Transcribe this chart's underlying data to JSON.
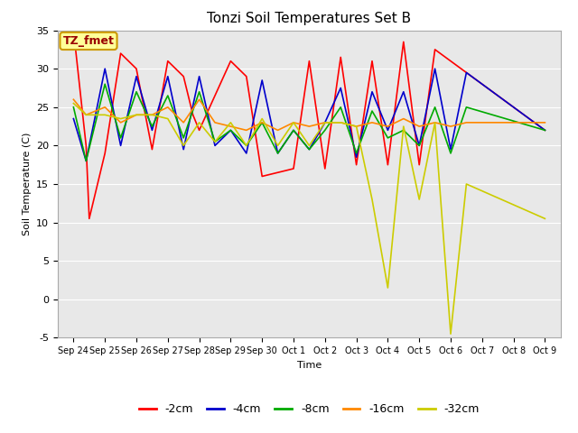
{
  "title": "Tonzi Soil Temperatures Set B",
  "xlabel": "Time",
  "ylabel": "Soil Temperature (C)",
  "ylim": [
    -5,
    35
  ],
  "xlim": [
    -0.5,
    15.5
  ],
  "background_color": "#ffffff",
  "plot_bg_color": "#e8e8e8",
  "annotation_text": "TZ_fmet",
  "annotation_bg": "#ffff99",
  "annotation_border": "#cc9900",
  "annotation_text_color": "#990000",
  "legend_labels": [
    "-2cm",
    "-4cm",
    "-8cm",
    "-16cm",
    "-32cm"
  ],
  "line_colors": [
    "#ff0000",
    "#0000cc",
    "#00aa00",
    "#ff8800",
    "#cccc00"
  ],
  "line_widths": [
    1.2,
    1.2,
    1.2,
    1.2,
    1.2
  ],
  "xtick_labels": [
    "Sep 24",
    "Sep 25",
    "Sep 26",
    "Sep 27",
    "Sep 28",
    "Sep 29",
    "Sep 30",
    "Oct 1",
    "Oct 2",
    "Oct 3",
    "Oct 4",
    "Oct 5",
    "Oct 6",
    "Oct 7",
    "Oct 8",
    "Oct 9"
  ],
  "xtick_positions": [
    0,
    1,
    2,
    3,
    4,
    5,
    6,
    7,
    8,
    9,
    10,
    11,
    12,
    13,
    14,
    15
  ],
  "ytick_vals": [
    -5,
    0,
    5,
    10,
    15,
    20,
    25,
    30,
    35
  ],
  "series": {
    "m2cm": [
      35,
      20,
      10.5,
      19,
      32,
      30,
      19.5,
      31,
      29,
      24,
      22,
      31,
      29,
      16,
      16.5,
      17,
      31,
      17,
      31.5,
      17.5,
      31,
      17.5,
      33.5,
      17.5,
      32.5,
      22
    ],
    "m4cm": [
      23.5,
      18,
      30,
      20,
      29,
      22,
      29,
      19.5,
      29,
      20,
      22,
      19,
      28.5,
      19,
      22,
      19.5,
      23,
      27.5,
      18.5,
      27,
      22,
      27,
      20,
      30,
      19.5,
      29.5,
      22
    ],
    "m8cm": [
      25,
      18,
      28,
      21,
      27,
      22.5,
      26.5,
      21,
      27,
      20.5,
      22,
      20,
      23,
      19,
      22,
      19.5,
      22,
      25,
      19,
      24.5,
      21,
      22,
      20,
      25,
      19,
      25,
      22
    ],
    "m16cm": [
      26,
      24,
      25,
      23,
      24,
      24,
      25,
      23,
      26,
      23,
      22.5,
      22,
      23,
      22,
      23,
      22.5,
      23,
      23,
      22.5,
      23,
      22.5,
      23.5,
      22.5,
      23,
      22.5,
      23,
      23
    ],
    "m32cm": [
      25.5,
      24,
      24,
      23.5,
      24,
      24,
      23.5,
      20,
      23,
      20.5,
      23,
      20,
      23.5,
      20,
      23,
      20,
      23,
      23,
      22.5,
      13,
      1.5,
      22.5,
      13,
      23,
      -4.5,
      15,
      10.5
    ]
  },
  "series_x": {
    "m2cm": [
      0,
      0.4,
      0.5,
      1,
      1.5,
      2,
      2.5,
      3,
      3.5,
      3.8,
      4,
      5,
      5.5,
      6,
      6.5,
      7,
      7.5,
      8,
      8.5,
      9,
      9.5,
      10,
      10.5,
      11,
      11.5,
      15
    ],
    "m4cm": [
      0,
      0.4,
      1,
      1.5,
      2,
      2.5,
      3,
      3.5,
      4,
      4.5,
      5,
      5.5,
      6,
      6.5,
      7,
      7.5,
      8,
      8.5,
      9,
      9.5,
      10,
      10.5,
      11,
      11.5,
      12,
      12.5,
      15
    ],
    "m8cm": [
      0,
      0.4,
      1,
      1.5,
      2,
      2.5,
      3,
      3.5,
      4,
      4.5,
      5,
      5.5,
      6,
      6.5,
      7,
      7.5,
      8,
      8.5,
      9,
      9.5,
      10,
      10.5,
      11,
      11.5,
      12,
      12.5,
      15
    ],
    "m16cm": [
      0,
      0.4,
      1,
      1.5,
      2,
      2.5,
      3,
      3.5,
      4,
      4.5,
      5,
      5.5,
      6,
      6.5,
      7,
      7.5,
      8,
      8.5,
      9,
      9.5,
      10,
      10.5,
      11,
      11.5,
      12,
      12.5,
      15
    ],
    "m32cm": [
      0,
      0.4,
      1,
      1.5,
      2,
      2.5,
      3,
      3.5,
      4,
      4.5,
      5,
      5.5,
      6,
      6.5,
      7,
      7.5,
      8,
      8.5,
      9,
      9.5,
      10,
      10.5,
      11,
      11.5,
      12,
      12.5,
      15
    ]
  }
}
